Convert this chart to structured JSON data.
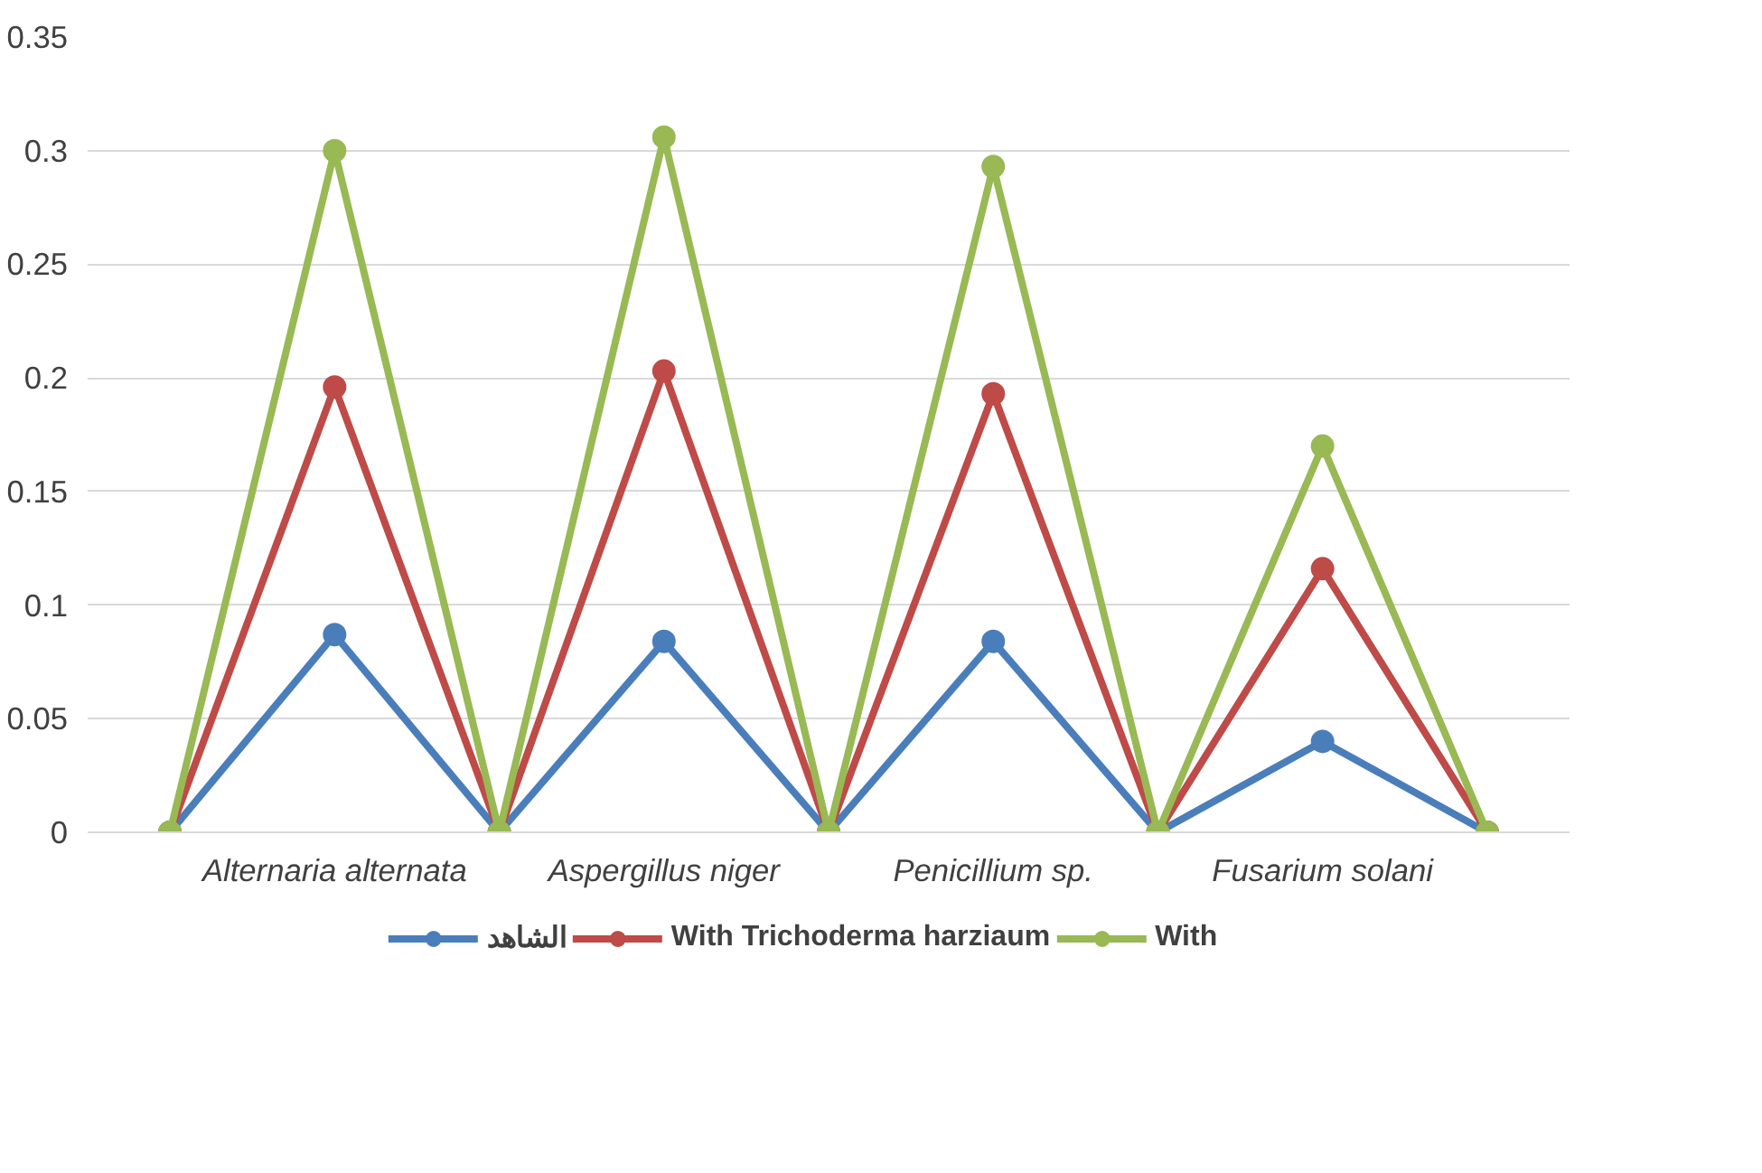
{
  "chart_data": {
    "type": "line",
    "categories": [
      null,
      "Alternaria alternata",
      null,
      "Aspergillus niger",
      null,
      "Penicillium sp.",
      null,
      "Fusarium solani",
      null
    ],
    "series": [
      {
        "name": "الشاهد",
        "color": "#4a7ebb",
        "values": [
          0,
          0.087,
          0,
          0.084,
          0,
          0.084,
          0,
          0.04,
          0
        ]
      },
      {
        "name": "With Trichoderma harziaum",
        "color": "#be4b48",
        "values": [
          0,
          0.196,
          0,
          0.203,
          0,
          0.193,
          0,
          0.116,
          0
        ]
      },
      {
        "name": "With",
        "color": "#98b954",
        "values": [
          0,
          0.3,
          0,
          0.306,
          0,
          0.293,
          0,
          0.17,
          0
        ]
      }
    ],
    "ylim": [
      0,
      0.35
    ],
    "yticks": [
      0,
      0.05,
      0.1,
      0.15,
      0.2,
      0.25,
      0.3,
      0.35
    ],
    "grid": "y",
    "legend": "bottom",
    "marker": "circle",
    "line_style": "solid"
  }
}
